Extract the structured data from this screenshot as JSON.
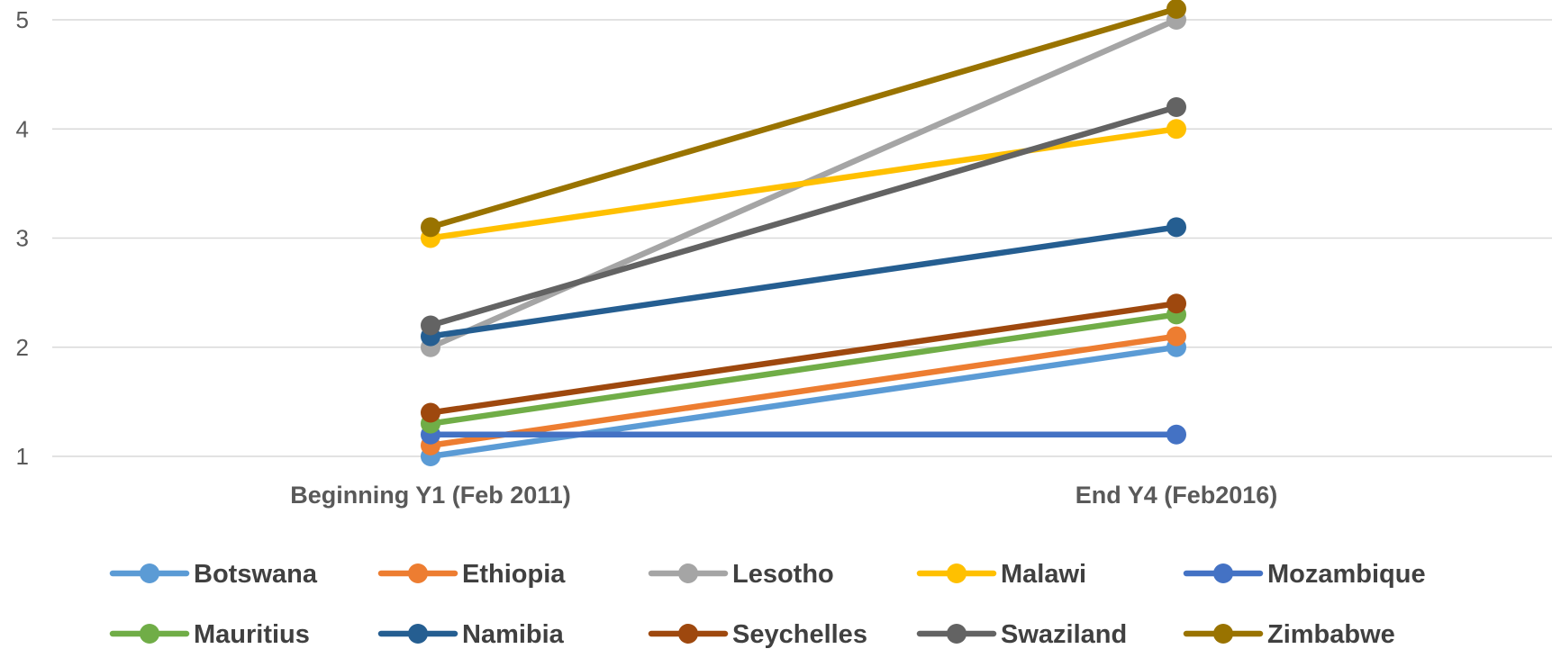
{
  "chart_data": {
    "type": "line",
    "title": "",
    "xlabel": "",
    "ylabel": "",
    "categories": [
      "Beginning Y1 (Feb 2011)",
      "End Y4 (Feb2016)"
    ],
    "ylim": [
      1,
      5
    ],
    "yticks": [
      "1",
      "2",
      "3",
      "4",
      "5"
    ],
    "grid": true,
    "legend_position": "bottom",
    "series": [
      {
        "name": "Botswana",
        "color": "#5B9BD5",
        "values": [
          1.0,
          2.0
        ]
      },
      {
        "name": "Ethiopia",
        "color": "#ED7D31",
        "values": [
          1.1,
          2.1
        ]
      },
      {
        "name": "Lesotho",
        "color": "#A5A5A5",
        "values": [
          2.0,
          5.0
        ]
      },
      {
        "name": "Malawi",
        "color": "#FFC000",
        "values": [
          3.0,
          4.0
        ]
      },
      {
        "name": "Mozambique",
        "color": "#4472C4",
        "values": [
          1.2,
          1.2
        ]
      },
      {
        "name": "Mauritius",
        "color": "#70AD47",
        "values": [
          1.3,
          2.3
        ]
      },
      {
        "name": "Namibia",
        "color": "#255E91",
        "values": [
          2.1,
          3.1
        ]
      },
      {
        "name": "Seychelles",
        "color": "#9E480E",
        "values": [
          1.4,
          2.4
        ]
      },
      {
        "name": "Swaziland",
        "color": "#636363",
        "values": [
          2.2,
          4.2
        ]
      },
      {
        "name": "Zimbabwe",
        "color": "#997300",
        "values": [
          3.1,
          5.1
        ]
      }
    ]
  }
}
